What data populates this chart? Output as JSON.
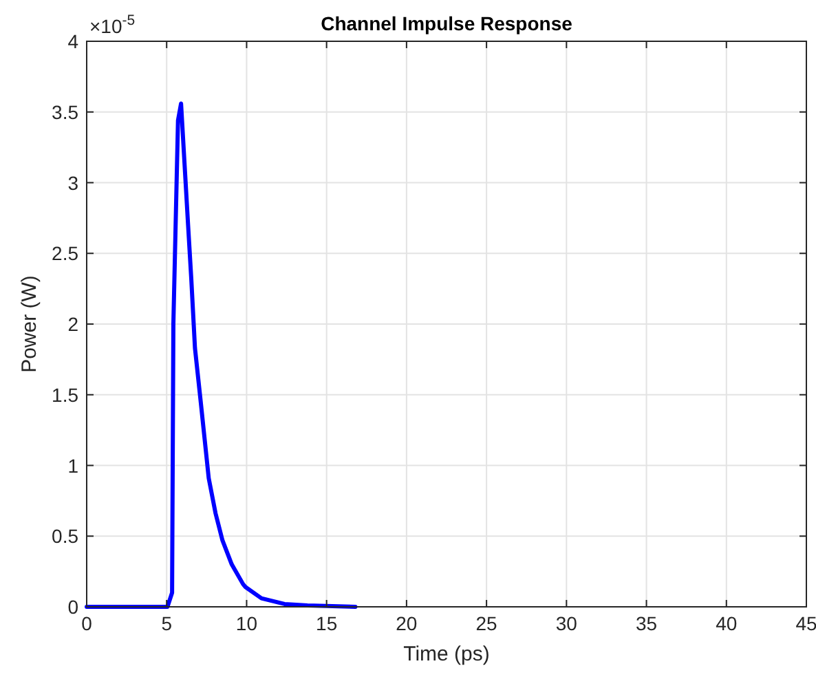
{
  "chart_data": {
    "type": "line",
    "title": "Channel Impulse Response",
    "xlabel": "Time (ps)",
    "ylabel": "Power (W)",
    "annotations": [
      "×10$^{-5}$"
    ],
    "xlim": [
      0,
      45
    ],
    "xticks": [
      0,
      5,
      10,
      15,
      20,
      25,
      30,
      35,
      40,
      45
    ],
    "ylim": [
      0,
      4
    ],
    "yticks": [
      0,
      0.5,
      1,
      1.5,
      2,
      2.5,
      3,
      3.5,
      4
    ],
    "grid": true,
    "marker": "none",
    "line_style": "solid",
    "series": [
      {
        "color": "#0000ff",
        "x": [
          0,
          5.05,
          5.34,
          5.42,
          5.71,
          5.9,
          6.34,
          6.54,
          6.77,
          7.14,
          7.63,
          8.06,
          8.49,
          9.07,
          9.78,
          9.93,
          10.93,
          12.37,
          13.8,
          16.8
        ],
        "values": [
          0,
          0,
          0.1,
          2,
          3.44,
          3.56,
          2.7,
          2.32,
          1.83,
          1.44,
          0.91,
          0.66,
          0.47,
          0.3,
          0.16,
          0.14,
          0.06,
          0.02,
          0.01,
          0
        ]
      }
    ]
  }
}
